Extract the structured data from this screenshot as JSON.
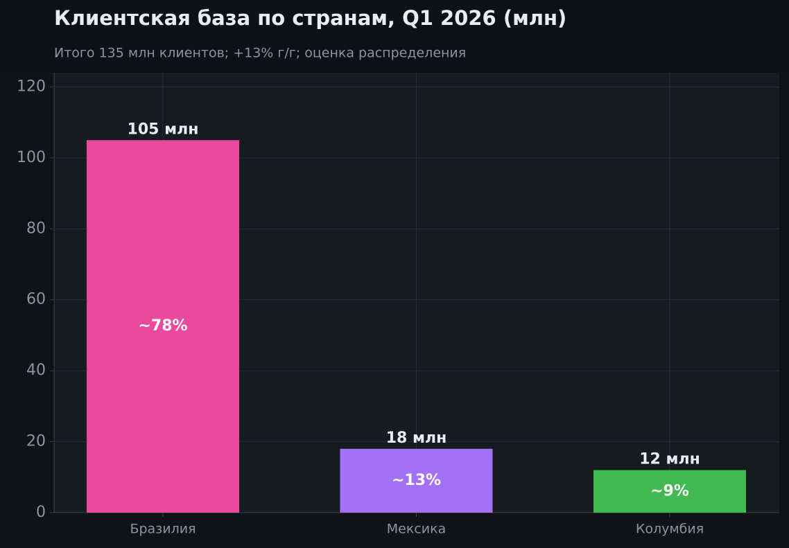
{
  "chart_data": {
    "type": "bar",
    "title": "Клиентская база по странам, Q1 2026 (млн)",
    "subtitle": "Итого 135 млн клиентов; +13% г/г; оценка распределения",
    "categories": [
      "Бразилия",
      "Мексика",
      "Колумбия"
    ],
    "values": [
      105,
      18,
      12
    ],
    "value_labels": [
      "105 млн",
      "18 млн",
      "12 млн"
    ],
    "share_labels": [
      "~78%",
      "~13%",
      "~9%"
    ],
    "colors": [
      "#ea4a9d",
      "#a371f7",
      "#3fb950"
    ],
    "ylim": [
      0,
      124
    ],
    "yticks": [
      0,
      20,
      40,
      60,
      80,
      100,
      120
    ],
    "grid": true
  }
}
